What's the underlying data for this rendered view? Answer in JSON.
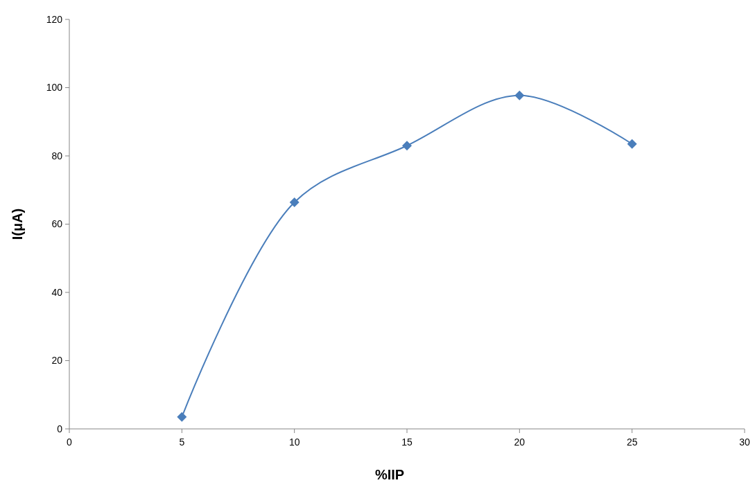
{
  "chart_data": {
    "type": "line",
    "xlabel": "%IIP",
    "ylabel": "I(μA)",
    "x": [
      5,
      10,
      15,
      20,
      25
    ],
    "series": [
      {
        "color": "#4a7ebb",
        "values": [
          3.5,
          66.4,
          83,
          97.7,
          83.5
        ]
      }
    ],
    "xlim": [
      0,
      30
    ],
    "xticks": [
      0,
      5,
      10,
      15,
      20,
      25,
      30
    ],
    "ylim": [
      0,
      120
    ],
    "yticks": [
      0,
      20,
      40,
      60,
      80,
      100,
      120
    ],
    "grid": false,
    "marker": "diamond",
    "line_style": "solid"
  }
}
